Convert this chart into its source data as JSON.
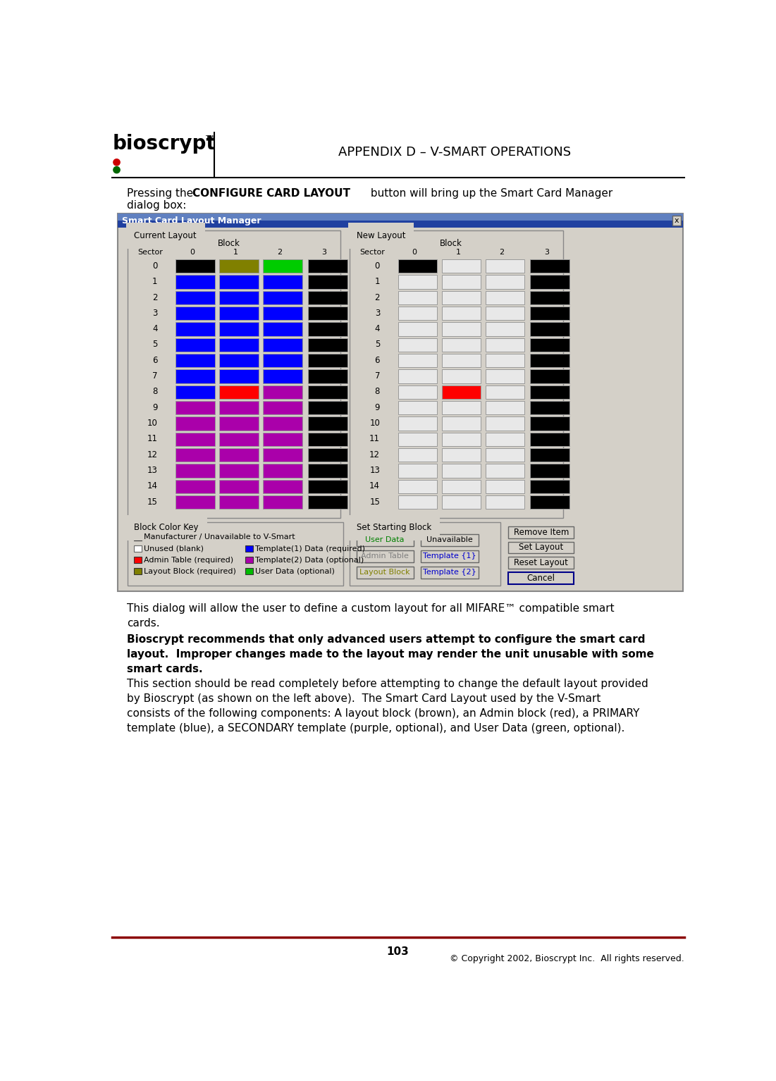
{
  "title_header": "APPENDIX D – V-SMART OPERATIONS",
  "page_number": "103",
  "copyright": "© Copyright 2002, Bioscrypt Inc.  All rights reserved.",
  "dialog_title": "Smart Card Layout Manager",
  "current_layout_label": "Current Layout",
  "new_layout_label": "New Layout",
  "block_label": "Block",
  "sector_label": "Sector",
  "sectors": [
    "0",
    "1",
    "2",
    "3",
    "4",
    "5",
    "6",
    "7",
    "8",
    "9",
    "10",
    "11",
    "12",
    "13",
    "14",
    "15"
  ],
  "blocks": [
    "0",
    "1",
    "2",
    "3"
  ],
  "current_layout_colors": [
    [
      "#000000",
      "#808000",
      "#00cc00",
      "#000000"
    ],
    [
      "#0000ff",
      "#0000ff",
      "#0000ff",
      "#000000"
    ],
    [
      "#0000ff",
      "#0000ff",
      "#0000ff",
      "#000000"
    ],
    [
      "#0000ff",
      "#0000ff",
      "#0000ff",
      "#000000"
    ],
    [
      "#0000ff",
      "#0000ff",
      "#0000ff",
      "#000000"
    ],
    [
      "#0000ff",
      "#0000ff",
      "#0000ff",
      "#000000"
    ],
    [
      "#0000ff",
      "#0000ff",
      "#0000ff",
      "#000000"
    ],
    [
      "#0000ff",
      "#0000ff",
      "#0000ff",
      "#000000"
    ],
    [
      "#0000ff",
      "#ff0000",
      "#aa00aa",
      "#000000"
    ],
    [
      "#aa00aa",
      "#aa00aa",
      "#aa00aa",
      "#000000"
    ],
    [
      "#aa00aa",
      "#aa00aa",
      "#aa00aa",
      "#000000"
    ],
    [
      "#aa00aa",
      "#aa00aa",
      "#aa00aa",
      "#000000"
    ],
    [
      "#aa00aa",
      "#aa00aa",
      "#aa00aa",
      "#000000"
    ],
    [
      "#aa00aa",
      "#aa00aa",
      "#aa00aa",
      "#000000"
    ],
    [
      "#aa00aa",
      "#aa00aa",
      "#aa00aa",
      "#000000"
    ],
    [
      "#aa00aa",
      "#aa00aa",
      "#aa00aa",
      "#000000"
    ]
  ],
  "new_layout_colors": [
    [
      "#000000",
      "#e8e8e8",
      "#e8e8e8",
      "#000000"
    ],
    [
      "#e8e8e8",
      "#e8e8e8",
      "#e8e8e8",
      "#000000"
    ],
    [
      "#e8e8e8",
      "#e8e8e8",
      "#e8e8e8",
      "#000000"
    ],
    [
      "#e8e8e8",
      "#e8e8e8",
      "#e8e8e8",
      "#000000"
    ],
    [
      "#e8e8e8",
      "#e8e8e8",
      "#e8e8e8",
      "#000000"
    ],
    [
      "#e8e8e8",
      "#e8e8e8",
      "#e8e8e8",
      "#000000"
    ],
    [
      "#e8e8e8",
      "#e8e8e8",
      "#e8e8e8",
      "#000000"
    ],
    [
      "#e8e8e8",
      "#e8e8e8",
      "#e8e8e8",
      "#000000"
    ],
    [
      "#e8e8e8",
      "#ff0000",
      "#e8e8e8",
      "#000000"
    ],
    [
      "#e8e8e8",
      "#e8e8e8",
      "#e8e8e8",
      "#000000"
    ],
    [
      "#e8e8e8",
      "#e8e8e8",
      "#e8e8e8",
      "#000000"
    ],
    [
      "#e8e8e8",
      "#e8e8e8",
      "#e8e8e8",
      "#000000"
    ],
    [
      "#e8e8e8",
      "#e8e8e8",
      "#e8e8e8",
      "#000000"
    ],
    [
      "#e8e8e8",
      "#e8e8e8",
      "#e8e8e8",
      "#000000"
    ],
    [
      "#e8e8e8",
      "#e8e8e8",
      "#e8e8e8",
      "#000000"
    ],
    [
      "#e8e8e8",
      "#e8e8e8",
      "#e8e8e8",
      "#000000"
    ]
  ],
  "bg_color": "#ffffff",
  "dialog_bg": "#d4d0c8",
  "dialog_title_bg_top": "#6080c0",
  "dialog_title_bg_bot": "#2040a0",
  "panel_bg": "#d4d0c8",
  "footer_line_color": "#8b0000",
  "header_line_color": "#000000"
}
